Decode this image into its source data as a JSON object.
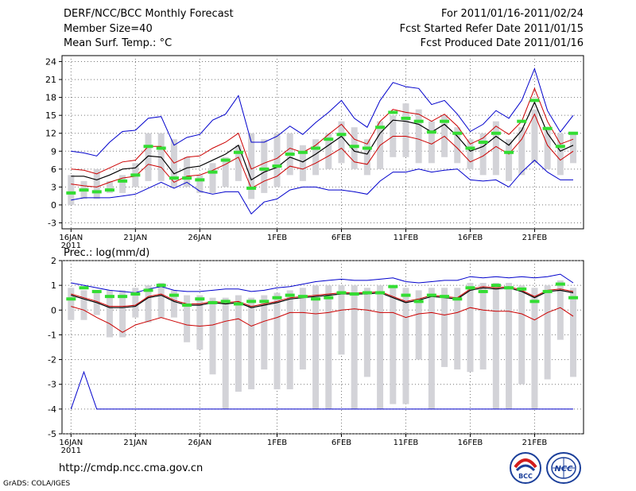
{
  "header": {
    "title": "DERF/NCC/BCC Monthly Forecast",
    "member_size": "Member Size=40",
    "variable": "Mean Surf. Temp.: °C",
    "forecast_period": "For 2011/01/16-2011/02/24",
    "started_refer_date": "Fcst Started Refer Date 2011/01/15",
    "produced_date": "Fcst Produced Date 2011/01/16"
  },
  "footer": {
    "url": "http://cmdp.ncc.cma.gov.cn",
    "credit": "GrADS: COLA/IGES",
    "logo_left_text": "BCC",
    "logo_right_text": "NCC"
  },
  "colors": {
    "envelope_max_min": "#0000cc",
    "percentile_band": "#cc0000",
    "ensemble_mean": "#000000",
    "box": "#d3d3d8",
    "median_mark": "#33dd33",
    "grid": "#777777"
  },
  "chart_data": [
    {
      "type": "box-ensemble",
      "title": "Mean Surf. Temp.: °C",
      "ylim": [
        -4,
        25
      ],
      "yticks": [
        "24",
        "21",
        "18",
        "15",
        "12",
        "9",
        "6",
        "3",
        "0",
        "-3"
      ],
      "xticks": [
        "16JAN",
        "21JAN",
        "26JAN",
        "1FEB",
        "6FEB",
        "11FEB",
        "16FEB",
        "21FEB"
      ],
      "x_year": "2011",
      "days": 40,
      "series": [
        {
          "name": "max",
          "values": [
            9,
            8.7,
            8.2,
            10.5,
            12.3,
            12.5,
            14.5,
            14.8,
            10,
            11.3,
            11.8,
            14.2,
            15.2,
            18.3,
            10.5,
            10.5,
            11.5,
            13.2,
            11.8,
            13.8,
            15.5,
            17.5,
            14.5,
            13,
            17.5,
            20.5,
            19.8,
            19.5,
            16.8,
            17.5,
            15.2,
            12.3,
            13.5,
            15.8,
            14.5,
            17.5,
            22.8,
            15.8,
            12.2,
            15
          ]
        },
        {
          "name": "p90",
          "values": [
            6,
            5.8,
            5.2,
            6.2,
            7.2,
            7.5,
            9.8,
            9.8,
            7,
            8,
            8.2,
            9.5,
            10.5,
            12,
            6,
            7,
            7.8,
            9.5,
            8.8,
            10,
            11.8,
            13.5,
            11,
            10.2,
            14,
            16,
            15.5,
            15.2,
            14,
            15.2,
            13.2,
            10.2,
            11.2,
            13.2,
            11.8,
            14,
            19.5,
            14,
            10.2,
            11
          ]
        },
        {
          "name": "mean",
          "values": [
            4.8,
            4.8,
            4.2,
            5,
            6,
            6.2,
            8.2,
            8,
            5.2,
            6.2,
            6.5,
            7.5,
            8.5,
            10,
            4.2,
            5.5,
            6.3,
            8,
            7.2,
            8.5,
            10,
            11.5,
            9,
            8.5,
            12,
            14.2,
            14,
            13.5,
            12.2,
            13.5,
            11.5,
            9,
            9.8,
            11.5,
            10,
            12.5,
            17.2,
            12,
            9,
            10
          ]
        },
        {
          "name": "p10",
          "values": [
            3.5,
            3.2,
            3,
            3.8,
            4.5,
            4.8,
            6.8,
            6.3,
            3.8,
            4.8,
            5,
            5.8,
            6.8,
            8,
            2.8,
            4,
            4.8,
            6.5,
            6,
            7,
            8.2,
            9.5,
            7.2,
            6.8,
            10,
            11.5,
            11.5,
            11,
            10.2,
            11.5,
            9.5,
            7.2,
            8.2,
            9.8,
            8.5,
            11,
            15.2,
            10,
            7.5,
            9
          ]
        },
        {
          "name": "min",
          "values": [
            0.8,
            1.2,
            1.2,
            1.2,
            1.5,
            1.8,
            2.8,
            3.8,
            2.8,
            3.8,
            2.3,
            1.8,
            2.2,
            2.2,
            -1.5,
            0.5,
            1,
            2.5,
            3,
            3,
            2.5,
            2.5,
            2.2,
            1.8,
            4,
            5.5,
            5.5,
            6,
            5.5,
            5.8,
            6,
            4.2,
            4,
            4.2,
            3,
            5.5,
            7.5,
            5.5,
            4.2,
            4.2
          ]
        },
        {
          "name": "box_top",
          "values": [
            5,
            4,
            6,
            4,
            5,
            7,
            12,
            12,
            11,
            8,
            5,
            7,
            8,
            10,
            12,
            11,
            12,
            12,
            10,
            11,
            12,
            14,
            13,
            11,
            14,
            15,
            17,
            16,
            14,
            15,
            13,
            11,
            12,
            14,
            11,
            13,
            16,
            13,
            12,
            12
          ]
        },
        {
          "name": "box_bottom",
          "values": [
            0,
            1,
            1,
            2,
            2,
            3,
            4,
            4,
            3,
            3,
            2,
            2,
            3,
            4,
            1,
            2,
            3,
            5,
            4,
            5,
            6,
            7,
            6,
            5,
            6,
            8,
            8,
            7,
            7,
            8,
            7,
            6,
            5,
            5,
            4,
            5,
            7,
            6,
            5,
            7
          ]
        },
        {
          "name": "median",
          "values": [
            2,
            2.5,
            2.2,
            2.5,
            4,
            5,
            9.8,
            9.5,
            4.5,
            4.5,
            4.2,
            5.5,
            7.5,
            8.8,
            2.8,
            6,
            6.5,
            8.5,
            8.8,
            9.5,
            11,
            11.8,
            9.8,
            9.5,
            13,
            15.5,
            14.5,
            14,
            12.2,
            14,
            12,
            9.5,
            10.5,
            12,
            8.8,
            14,
            17.5,
            12.8,
            9.8,
            12
          ]
        }
      ]
    },
    {
      "type": "box-ensemble",
      "title": "Prec.: log(mm/d)",
      "ylim": [
        -5,
        2
      ],
      "yticks": [
        "2",
        "1",
        "0",
        "-1",
        "-2",
        "-3",
        "-4",
        "-5"
      ],
      "xticks": [
        "16JAN",
        "21JAN",
        "26JAN",
        "1FEB",
        "6FEB",
        "11FEB",
        "16FEB",
        "21FEB"
      ],
      "x_year": "2011",
      "days": 40,
      "series": [
        {
          "name": "max",
          "values": [
            1.1,
            1,
            0.9,
            0.8,
            0.75,
            0.7,
            0.85,
            0.95,
            0.8,
            0.75,
            0.75,
            0.8,
            0.85,
            0.85,
            0.75,
            0.8,
            0.9,
            0.95,
            1.05,
            1.15,
            1.2,
            1.25,
            1.2,
            1.2,
            1.25,
            1.3,
            1.15,
            1.1,
            1.15,
            1.2,
            1.2,
            1.35,
            1.3,
            1.35,
            1.3,
            1.35,
            1.3,
            1.35,
            1.45,
            1.1
          ]
        },
        {
          "name": "mean",
          "values": [
            0.6,
            0.45,
            0.3,
            0.1,
            0.1,
            0.15,
            0.5,
            0.6,
            0.35,
            0.2,
            0.2,
            0.3,
            0.25,
            0.3,
            0.1,
            0.2,
            0.3,
            0.45,
            0.5,
            0.55,
            0.6,
            0.65,
            0.65,
            0.65,
            0.7,
            0.5,
            0.3,
            0.4,
            0.55,
            0.5,
            0.45,
            0.8,
            0.9,
            0.85,
            0.9,
            0.75,
            0.5,
            0.75,
            0.8,
            0.7
          ]
        },
        {
          "name": "p10",
          "values": [
            0.15,
            0,
            -0.3,
            -0.55,
            -0.9,
            -0.6,
            -0.45,
            -0.3,
            -0.45,
            -0.6,
            -0.65,
            -0.6,
            -0.45,
            -0.35,
            -0.65,
            -0.45,
            -0.3,
            -0.1,
            -0.1,
            -0.15,
            -0.1,
            0,
            0.05,
            0,
            -0.1,
            -0.1,
            -0.3,
            -0.15,
            -0.1,
            -0.2,
            -0.1,
            0.1,
            0,
            -0.05,
            -0.05,
            -0.15,
            -0.4,
            -0.1,
            0.1,
            -0.25
          ]
        },
        {
          "name": "p90",
          "values": [
            0.65,
            0.5,
            0.35,
            0.15,
            0.15,
            0.2,
            0.55,
            0.65,
            0.4,
            0.25,
            0.25,
            0.35,
            0.3,
            0.35,
            0.15,
            0.25,
            0.35,
            0.5,
            0.55,
            0.6,
            0.65,
            0.7,
            0.7,
            0.7,
            0.75,
            0.55,
            0.35,
            0.45,
            0.6,
            0.55,
            0.5,
            0.85,
            0.95,
            0.9,
            0.95,
            0.8,
            0.55,
            0.8,
            0.85,
            0.75
          ]
        },
        {
          "name": "min",
          "values": [
            -4,
            -2.5,
            -4,
            -4,
            -4,
            -4,
            -4,
            -4,
            -4,
            -4,
            -4,
            -4,
            -4,
            -4,
            -4,
            -4,
            -4,
            -4,
            -4,
            -4,
            -4,
            -4,
            -4,
            -4,
            -4,
            -4,
            -4,
            -4,
            -4,
            -4,
            -4,
            -4,
            -4,
            -4,
            -4,
            -4,
            -4,
            -4,
            -4,
            -4
          ]
        },
        {
          "name": "box_top",
          "values": [
            0.9,
            0.8,
            0.7,
            0.8,
            0.8,
            0.9,
            1,
            1.1,
            0.8,
            0.6,
            0.6,
            0.5,
            0.5,
            0.6,
            0.5,
            0.6,
            0.7,
            0.8,
            0.9,
            1,
            1,
            1,
            1,
            0.9,
            1,
            1,
            0.9,
            0.8,
            0.9,
            0.9,
            0.9,
            1.1,
            1.1,
            1.1,
            1.1,
            1,
            0.9,
            1,
            1.2,
            0.9
          ]
        },
        {
          "name": "box_bottom",
          "values": [
            -0.4,
            -0.4,
            -0.2,
            -1.1,
            -1.1,
            -0.3,
            -0.5,
            -0.3,
            -0.3,
            -1.3,
            -1.6,
            -2.6,
            -4,
            -3.3,
            -3.2,
            -2.4,
            -3.2,
            -3.2,
            -2.4,
            -4,
            -4,
            -1.8,
            -4,
            -2.7,
            -4,
            -3.8,
            -3.8,
            -2,
            -4,
            -2.3,
            -2.4,
            -2.5,
            -2.4,
            -4,
            -4,
            -3,
            -4,
            -2.8,
            -1.2,
            -2.7
          ]
        },
        {
          "name": "median",
          "values": [
            0.45,
            0.9,
            0.75,
            0.55,
            0.55,
            0.65,
            0.8,
            1,
            0.6,
            0.2,
            0.45,
            0.3,
            0.35,
            0.25,
            0.35,
            0.35,
            0.5,
            0.6,
            0.55,
            0.45,
            0.5,
            0.7,
            0.65,
            0.7,
            0.7,
            0.95,
            0.6,
            0.35,
            0.6,
            0.55,
            0.45,
            0.9,
            0.75,
            1,
            0.9,
            0.85,
            0.35,
            0.75,
            1.05,
            0.5
          ]
        }
      ]
    }
  ]
}
